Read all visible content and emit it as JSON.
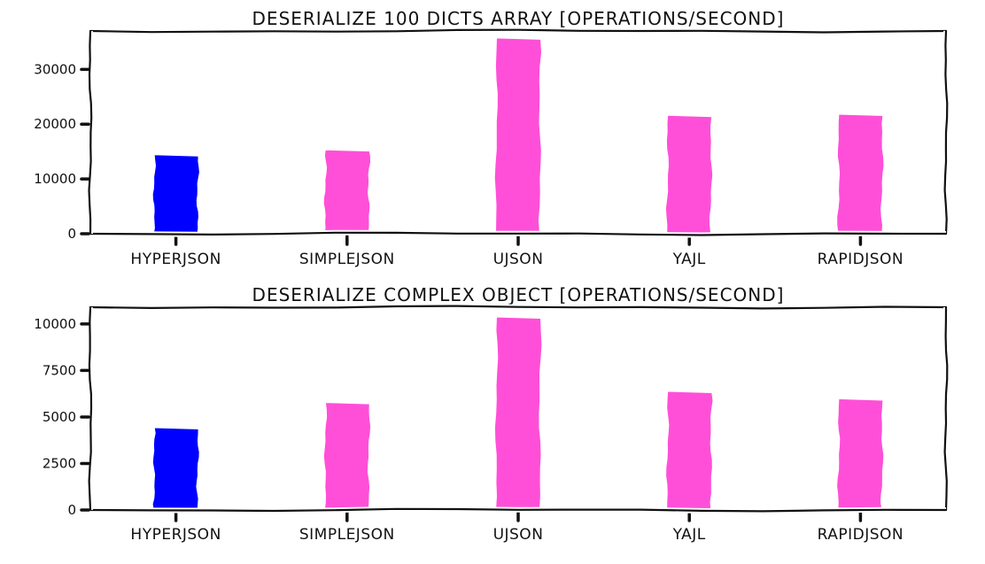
{
  "chart_data": [
    {
      "type": "bar",
      "title": "DESERIALIZE 100 DICTS ARRAY [OPERATIONS/SECOND]",
      "xlabel": "",
      "ylabel": "",
      "categories": [
        "HYPERJSON",
        "SIMPLEJSON",
        "UJSON",
        "YAJL",
        "RAPIDJSON"
      ],
      "values": [
        14500,
        15400,
        35800,
        21700,
        21900
      ],
      "yticks": [
        "0",
        "10000",
        "20000",
        "30000"
      ],
      "ylim": [
        0,
        37000
      ],
      "grid": false,
      "colors": [
        "#0000ff",
        "#ff4fd8",
        "#ff4fd8",
        "#ff4fd8",
        "#ff4fd8"
      ]
    },
    {
      "type": "bar",
      "title": "DESERIALIZE COMPLEX OBJECT [OPERATIONS/SECOND]",
      "xlabel": "",
      "ylabel": "",
      "categories": [
        "HYPERJSON",
        "SIMPLEJSON",
        "UJSON",
        "YAJL",
        "RAPIDJSON"
      ],
      "values": [
        4450,
        5800,
        10400,
        6400,
        6000
      ],
      "yticks": [
        "0",
        "2500",
        "5000",
        "7500",
        "10000"
      ],
      "ylim": [
        0,
        10900
      ],
      "grid": false,
      "colors": [
        "#0000ff",
        "#ff4fd8",
        "#ff4fd8",
        "#ff4fd8",
        "#ff4fd8"
      ]
    }
  ]
}
